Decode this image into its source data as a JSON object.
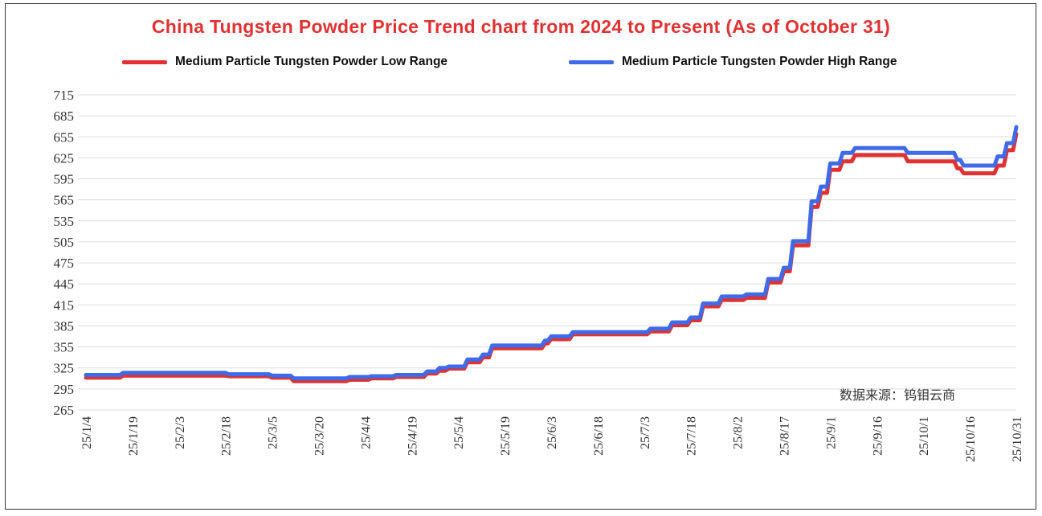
{
  "chart_data": {
    "type": "line",
    "title": "China Tungsten Powder Price Trend chart from 2024 to Present (As of October 31)",
    "xlabel": "",
    "ylabel": "",
    "ylim": [
      265,
      715
    ],
    "yticks": [
      265,
      295,
      325,
      355,
      385,
      415,
      445,
      475,
      505,
      535,
      565,
      595,
      625,
      655,
      685,
      715
    ],
    "xticks": [
      "25/1/4",
      "25/1/19",
      "25/2/3",
      "25/2/18",
      "25/3/5",
      "25/3/20",
      "25/4/4",
      "25/4/19",
      "25/5/4",
      "25/5/19",
      "25/6/3",
      "25/6/18",
      "25/7/3",
      "25/7/18",
      "25/8/2",
      "25/8/17",
      "25/9/1",
      "25/9/16",
      "25/10/1",
      "25/10/16",
      "25/10/31"
    ],
    "grid": true,
    "legend_position": "top",
    "source_note": "数据来源：钨钼云商",
    "series": [
      {
        "name": "Medium Particle Tungsten Powder Low Range",
        "color": "#e03232",
        "points": [
          [
            "25/1/4",
            311
          ],
          [
            "25/1/16",
            314
          ],
          [
            "25/2/19",
            313
          ],
          [
            "25/3/5",
            311
          ],
          [
            "25/3/12",
            306
          ],
          [
            "25/3/30",
            308
          ],
          [
            "25/4/6",
            310
          ],
          [
            "25/4/14",
            312
          ],
          [
            "25/4/24",
            317
          ],
          [
            "25/4/28",
            321
          ],
          [
            "25/5/1",
            324
          ],
          [
            "25/5/7",
            333
          ],
          [
            "25/5/12",
            340
          ],
          [
            "25/5/15",
            353
          ],
          [
            "25/6/1",
            360
          ],
          [
            "25/6/3",
            366
          ],
          [
            "25/6/10",
            373
          ],
          [
            "25/7/5",
            377
          ],
          [
            "25/7/12",
            386
          ],
          [
            "25/7/18",
            393
          ],
          [
            "25/7/22",
            413
          ],
          [
            "25/7/28",
            422
          ],
          [
            "25/8/5",
            425
          ],
          [
            "25/8/12",
            447
          ],
          [
            "25/8/17",
            463
          ],
          [
            "25/8/20",
            500
          ],
          [
            "25/8/26",
            555
          ],
          [
            "25/8/29",
            575
          ],
          [
            "25/9/1",
            608
          ],
          [
            "25/9/5",
            620
          ],
          [
            "25/9/9",
            629
          ],
          [
            "25/9/26",
            620
          ],
          [
            "25/10/12",
            610
          ],
          [
            "25/10/14",
            603
          ],
          [
            "25/10/23",
            603
          ],
          [
            "25/10/25",
            614
          ],
          [
            "25/10/28",
            636
          ],
          [
            "25/10/31",
            659
          ]
        ]
      },
      {
        "name": "Medium Particle Tungsten Powder High Range",
        "color": "#3f6ae8",
        "points": [
          [
            "25/1/4",
            315
          ],
          [
            "25/1/16",
            318
          ],
          [
            "25/2/19",
            316
          ],
          [
            "25/3/5",
            314
          ],
          [
            "25/3/12",
            310
          ],
          [
            "25/3/30",
            312
          ],
          [
            "25/4/6",
            313
          ],
          [
            "25/4/14",
            315
          ],
          [
            "25/4/24",
            320
          ],
          [
            "25/4/28",
            325
          ],
          [
            "25/5/1",
            327
          ],
          [
            "25/5/7",
            337
          ],
          [
            "25/5/12",
            344
          ],
          [
            "25/5/15",
            357
          ],
          [
            "25/6/1",
            364
          ],
          [
            "25/6/3",
            370
          ],
          [
            "25/6/10",
            376
          ],
          [
            "25/7/5",
            381
          ],
          [
            "25/7/12",
            390
          ],
          [
            "25/7/18",
            397
          ],
          [
            "25/7/22",
            417
          ],
          [
            "25/7/28",
            427
          ],
          [
            "25/8/5",
            430
          ],
          [
            "25/8/12",
            452
          ],
          [
            "25/8/17",
            468
          ],
          [
            "25/8/20",
            506
          ],
          [
            "25/8/26",
            563
          ],
          [
            "25/8/29",
            584
          ],
          [
            "25/9/1",
            617
          ],
          [
            "25/9/5",
            632
          ],
          [
            "25/9/9",
            639
          ],
          [
            "25/9/26",
            632
          ],
          [
            "25/10/12",
            622
          ],
          [
            "25/10/14",
            614
          ],
          [
            "25/10/23",
            614
          ],
          [
            "25/10/25",
            627
          ],
          [
            "25/10/28",
            646
          ],
          [
            "25/10/31",
            669
          ]
        ]
      }
    ]
  }
}
